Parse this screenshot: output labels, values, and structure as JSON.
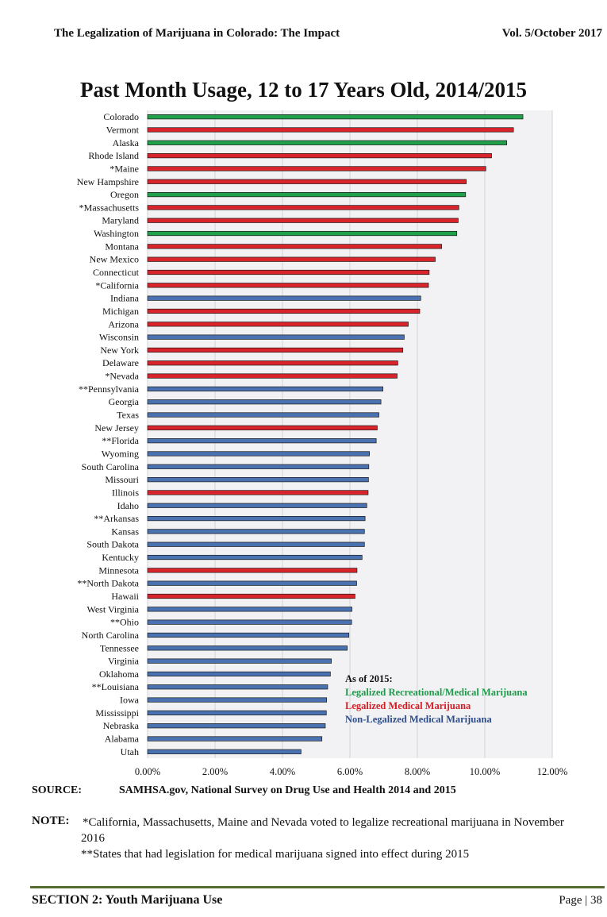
{
  "header": {
    "left": "The Legalization of Marijuana in Colorado: The Impact",
    "right": "Vol. 5/October 2017"
  },
  "chart_data": {
    "type": "bar",
    "orientation": "horizontal",
    "title": "Past Month Usage, 12 to 17 Years Old, 2014/2015",
    "xlim": [
      0,
      12
    ],
    "x_ticks": [
      "0.00%",
      "2.00%",
      "4.00%",
      "6.00%",
      "8.00%",
      "10.00%",
      "12.00%"
    ],
    "grid": "vertical",
    "legend_title": "As of 2015:",
    "legend": [
      {
        "name": "Legalized Recreational/Medical Marijuana",
        "color": "#21a04b"
      },
      {
        "name": "Legalized Medical Marijuana",
        "color": "#d9242b"
      },
      {
        "name": "Non-Legalized Medical Marijuana",
        "color": "#4a72b0"
      }
    ],
    "legend_text_colors": [
      "#1f9a4a",
      "#d32026",
      "#2e4d8c"
    ],
    "bars": [
      {
        "state": "Colorado",
        "value": 11.13,
        "group": 0
      },
      {
        "state": "Vermont",
        "value": 10.85,
        "group": 1
      },
      {
        "state": "Alaska",
        "value": 10.65,
        "group": 0
      },
      {
        "state": "Rhode Island",
        "value": 10.2,
        "group": 1
      },
      {
        "state": "*Maine",
        "value": 10.03,
        "group": 1
      },
      {
        "state": "New Hampshire",
        "value": 9.45,
        "group": 1
      },
      {
        "state": "Oregon",
        "value": 9.43,
        "group": 0
      },
      {
        "state": "*Massachusetts",
        "value": 9.23,
        "group": 1
      },
      {
        "state": "Maryland",
        "value": 9.21,
        "group": 1
      },
      {
        "state": "Washington",
        "value": 9.17,
        "group": 0
      },
      {
        "state": "Montana",
        "value": 8.72,
        "group": 1
      },
      {
        "state": "New Mexico",
        "value": 8.53,
        "group": 1
      },
      {
        "state": "Connecticut",
        "value": 8.35,
        "group": 1
      },
      {
        "state": "*California",
        "value": 8.33,
        "group": 1
      },
      {
        "state": "Indiana",
        "value": 8.1,
        "group": 2
      },
      {
        "state": "Michigan",
        "value": 8.07,
        "group": 1
      },
      {
        "state": "Arizona",
        "value": 7.73,
        "group": 1
      },
      {
        "state": "Wisconsin",
        "value": 7.61,
        "group": 2
      },
      {
        "state": "New York",
        "value": 7.57,
        "group": 1
      },
      {
        "state": "Delaware",
        "value": 7.42,
        "group": 1
      },
      {
        "state": "*Nevada",
        "value": 7.4,
        "group": 1
      },
      {
        "state": "**Pennsylvania",
        "value": 6.98,
        "group": 2
      },
      {
        "state": "Georgia",
        "value": 6.92,
        "group": 2
      },
      {
        "state": "Texas",
        "value": 6.86,
        "group": 2
      },
      {
        "state": "New Jersey",
        "value": 6.81,
        "group": 1
      },
      {
        "state": "**Florida",
        "value": 6.78,
        "group": 2
      },
      {
        "state": "Wyoming",
        "value": 6.58,
        "group": 2
      },
      {
        "state": "South Carolina",
        "value": 6.56,
        "group": 2
      },
      {
        "state": "Missouri",
        "value": 6.55,
        "group": 2
      },
      {
        "state": "Illinois",
        "value": 6.54,
        "group": 1
      },
      {
        "state": "Idaho",
        "value": 6.5,
        "group": 2
      },
      {
        "state": "**Arkansas",
        "value": 6.45,
        "group": 2
      },
      {
        "state": "Kansas",
        "value": 6.43,
        "group": 2
      },
      {
        "state": "South Dakota",
        "value": 6.43,
        "group": 2
      },
      {
        "state": "Kentucky",
        "value": 6.36,
        "group": 2
      },
      {
        "state": "Minnesota",
        "value": 6.21,
        "group": 1
      },
      {
        "state": "**North Dakota",
        "value": 6.2,
        "group": 2
      },
      {
        "state": "Hawaii",
        "value": 6.15,
        "group": 1
      },
      {
        "state": "West Virginia",
        "value": 6.06,
        "group": 2
      },
      {
        "state": "**Ohio",
        "value": 6.05,
        "group": 2
      },
      {
        "state": "North Carolina",
        "value": 5.97,
        "group": 2
      },
      {
        "state": "Tennessee",
        "value": 5.92,
        "group": 2
      },
      {
        "state": "Virginia",
        "value": 5.45,
        "group": 2
      },
      {
        "state": "Oklahoma",
        "value": 5.42,
        "group": 2
      },
      {
        "state": "**Louisiana",
        "value": 5.34,
        "group": 2
      },
      {
        "state": "Iowa",
        "value": 5.31,
        "group": 2
      },
      {
        "state": "Mississippi",
        "value": 5.3,
        "group": 2
      },
      {
        "state": "Nebraska",
        "value": 5.27,
        "group": 2
      },
      {
        "state": "Alabama",
        "value": 5.17,
        "group": 2
      },
      {
        "state": "Utah",
        "value": 4.55,
        "group": 2
      }
    ]
  },
  "source": {
    "label": "SOURCE:",
    "text": "SAMHSA.gov, National Survey on Drug Use and Health 2014 and 2015"
  },
  "note": {
    "label": "NOTE:",
    "line1": "*California, Massachusetts, Maine and Nevada voted to legalize recreational marijuana in November 2016",
    "line2": "**States that had legislation for medical marijuana signed into effect during 2015"
  },
  "footer": {
    "section": "SECTION 2:  Youth Marijuana Use",
    "page": "Page | 38"
  }
}
